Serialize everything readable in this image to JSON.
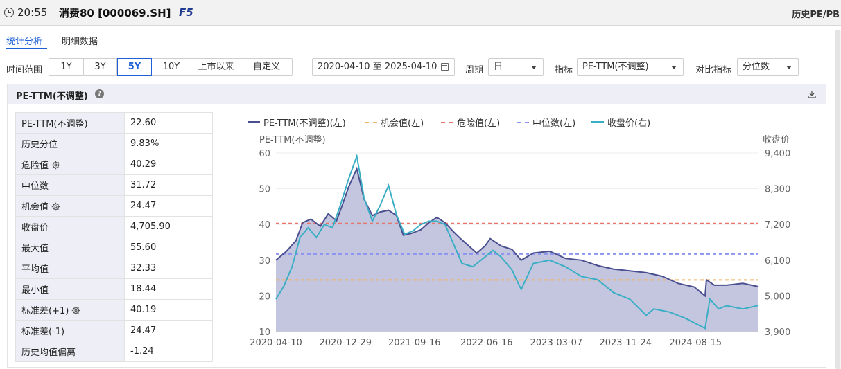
{
  "header": {
    "time": "20:55",
    "title": "消费80 [000069.SH]",
    "hotkey": "F5",
    "right_label": "历史PE/PB"
  },
  "tabs": [
    {
      "label": "统计分析",
      "active": true
    },
    {
      "label": "明细数据",
      "active": false
    }
  ],
  "controls": {
    "time_range_label": "时间范围",
    "ranges": [
      "1Y",
      "3Y",
      "5Y",
      "10Y",
      "上市以来",
      "自定义"
    ],
    "active_range": "5Y",
    "date_range": "2020-04-10 至 2025-04-10",
    "period_label": "周期",
    "period_value": "日",
    "indicator_label": "指标",
    "indicator_value": "PE-TTM(不调整)",
    "compare_label": "对比指标",
    "compare_value": "分位数"
  },
  "panel": {
    "title": "PE-TTM(不调整)"
  },
  "stats": [
    {
      "label": "PE-TTM(不调整)",
      "value": "22.60",
      "gear": false
    },
    {
      "label": "历史分位",
      "value": "9.83%",
      "gear": false
    },
    {
      "label": "危险值",
      "value": "40.29",
      "gear": true
    },
    {
      "label": "中位数",
      "value": "31.72",
      "gear": false
    },
    {
      "label": "机会值",
      "value": "24.47",
      "gear": true
    },
    {
      "label": "收盘价",
      "value": "4,705.90",
      "gear": false
    },
    {
      "label": "最大值",
      "value": "55.60",
      "gear": false
    },
    {
      "label": "平均值",
      "value": "32.33",
      "gear": false
    },
    {
      "label": "最小值",
      "value": "18.44",
      "gear": false
    },
    {
      "label": "标准差(+1)",
      "value": "40.19",
      "gear": true
    },
    {
      "label": "标准差(-1)",
      "value": "24.47",
      "gear": false
    },
    {
      "label": "历史均值偏离",
      "value": "-1.24",
      "gear": false
    }
  ],
  "colors": {
    "accent": "#1e60d8",
    "pe_line": "#4a4f8f",
    "pe_fill": "#b9bcd8",
    "close_line": "#3aaec4",
    "opportunity": "#f0b36a",
    "danger": "#e8746b",
    "median": "#8a94f0"
  },
  "chart_data": {
    "type": "line",
    "left_axis_label": "PE-TTM(不调整)",
    "right_axis_label": "收盘价",
    "legend": [
      "PE-TTM(不调整)(左)",
      "机会值(左)",
      "危险值(左)",
      "中位数(左)",
      "收盘价(右)"
    ],
    "x_tick_labels": [
      "2020-04-10",
      "2020-12-29",
      "2021-09-16",
      "2022-06-16",
      "2023-03-07",
      "2023-11-24",
      "2024-08-15"
    ],
    "x_range": [
      "2020-04-10",
      "2025-04-10"
    ],
    "left_ylim": [
      10,
      60
    ],
    "left_ticks": [
      "10",
      "20",
      "30",
      "40",
      "50",
      "60"
    ],
    "right_ylim": [
      3900,
      9400
    ],
    "right_ticks": [
      "3,900",
      "5,000",
      "6,100",
      "7,200",
      "8,300",
      "9,400"
    ],
    "reference_lines": {
      "danger": 40.29,
      "median": 31.72,
      "opportunity": 24.47
    },
    "series": [
      {
        "name": "PE-TTM(不调整)(左)",
        "axis": "left",
        "points": [
          [
            "2020-04-10",
            30.0
          ],
          [
            "2020-05-20",
            32.5
          ],
          [
            "2020-06-25",
            35.5
          ],
          [
            "2020-07-20",
            40.5
          ],
          [
            "2020-08-20",
            41.5
          ],
          [
            "2020-09-25",
            39.5
          ],
          [
            "2020-10-25",
            43.0
          ],
          [
            "2020-11-25",
            41.0
          ],
          [
            "2020-12-20",
            46.0
          ],
          [
            "2021-01-10",
            50.5
          ],
          [
            "2021-02-10",
            55.6
          ],
          [
            "2021-03-10",
            47.0
          ],
          [
            "2021-04-10",
            42.5
          ],
          [
            "2021-05-10",
            43.5
          ],
          [
            "2021-06-10",
            44.0
          ],
          [
            "2021-07-10",
            42.5
          ],
          [
            "2021-08-05",
            37.0
          ],
          [
            "2021-09-05",
            37.5
          ],
          [
            "2021-10-10",
            38.5
          ],
          [
            "2021-11-10",
            40.5
          ],
          [
            "2021-12-10",
            42.0
          ],
          [
            "2022-01-10",
            40.5
          ],
          [
            "2022-02-10",
            38.0
          ],
          [
            "2022-03-10",
            36.0
          ],
          [
            "2022-04-10",
            34.0
          ],
          [
            "2022-05-10",
            32.0
          ],
          [
            "2022-06-10",
            34.0
          ],
          [
            "2022-06-30",
            36.0
          ],
          [
            "2022-08-10",
            34.0
          ],
          [
            "2022-09-20",
            33.0
          ],
          [
            "2022-10-25",
            30.0
          ],
          [
            "2022-12-10",
            32.0
          ],
          [
            "2023-02-10",
            32.5
          ],
          [
            "2023-04-10",
            30.5
          ],
          [
            "2023-06-10",
            30.0
          ],
          [
            "2023-08-10",
            28.5
          ],
          [
            "2023-10-10",
            27.5
          ],
          [
            "2023-12-10",
            27.0
          ],
          [
            "2024-02-10",
            26.5
          ],
          [
            "2024-04-10",
            25.5
          ],
          [
            "2024-06-10",
            23.5
          ],
          [
            "2024-08-10",
            22.5
          ],
          [
            "2024-09-20",
            20.0
          ],
          [
            "2024-09-25",
            24.5
          ],
          [
            "2024-10-25",
            23.0
          ],
          [
            "2024-12-10",
            23.0
          ],
          [
            "2025-02-10",
            23.5
          ],
          [
            "2025-04-10",
            22.6
          ]
        ]
      },
      {
        "name": "收盘价(右)",
        "axis": "right",
        "points": [
          [
            "2020-04-10",
            4900
          ],
          [
            "2020-05-10",
            5300
          ],
          [
            "2020-06-10",
            5900
          ],
          [
            "2020-07-10",
            6800
          ],
          [
            "2020-08-10",
            7100
          ],
          [
            "2020-09-10",
            6800
          ],
          [
            "2020-10-10",
            7200
          ],
          [
            "2020-11-10",
            7100
          ],
          [
            "2020-12-10",
            7800
          ],
          [
            "2021-01-10",
            8600
          ],
          [
            "2021-02-10",
            9300
          ],
          [
            "2021-03-10",
            8000
          ],
          [
            "2021-04-10",
            7300
          ],
          [
            "2021-05-10",
            7800
          ],
          [
            "2021-06-10",
            8400
          ],
          [
            "2021-07-10",
            7500
          ],
          [
            "2021-08-10",
            6900
          ],
          [
            "2021-09-10",
            7000
          ],
          [
            "2021-10-10",
            7200
          ],
          [
            "2021-11-10",
            7300
          ],
          [
            "2021-12-10",
            7300
          ],
          [
            "2022-01-10",
            7200
          ],
          [
            "2022-03-15",
            6000
          ],
          [
            "2022-04-25",
            5900
          ],
          [
            "2022-06-10",
            6200
          ],
          [
            "2022-07-10",
            6400
          ],
          [
            "2022-08-10",
            6200
          ],
          [
            "2022-09-20",
            5800
          ],
          [
            "2022-10-25",
            5200
          ],
          [
            "2022-12-10",
            6000
          ],
          [
            "2023-02-10",
            6100
          ],
          [
            "2023-04-10",
            5900
          ],
          [
            "2023-06-10",
            5600
          ],
          [
            "2023-08-10",
            5500
          ],
          [
            "2023-10-10",
            5100
          ],
          [
            "2023-12-10",
            4900
          ],
          [
            "2024-02-10",
            4400
          ],
          [
            "2024-03-10",
            4600
          ],
          [
            "2024-05-10",
            4500
          ],
          [
            "2024-07-10",
            4300
          ],
          [
            "2024-09-20",
            4000
          ],
          [
            "2024-10-08",
            4900
          ],
          [
            "2024-11-10",
            4600
          ],
          [
            "2024-12-10",
            4700
          ],
          [
            "2025-02-10",
            4600
          ],
          [
            "2025-04-10",
            4706
          ]
        ]
      }
    ]
  }
}
